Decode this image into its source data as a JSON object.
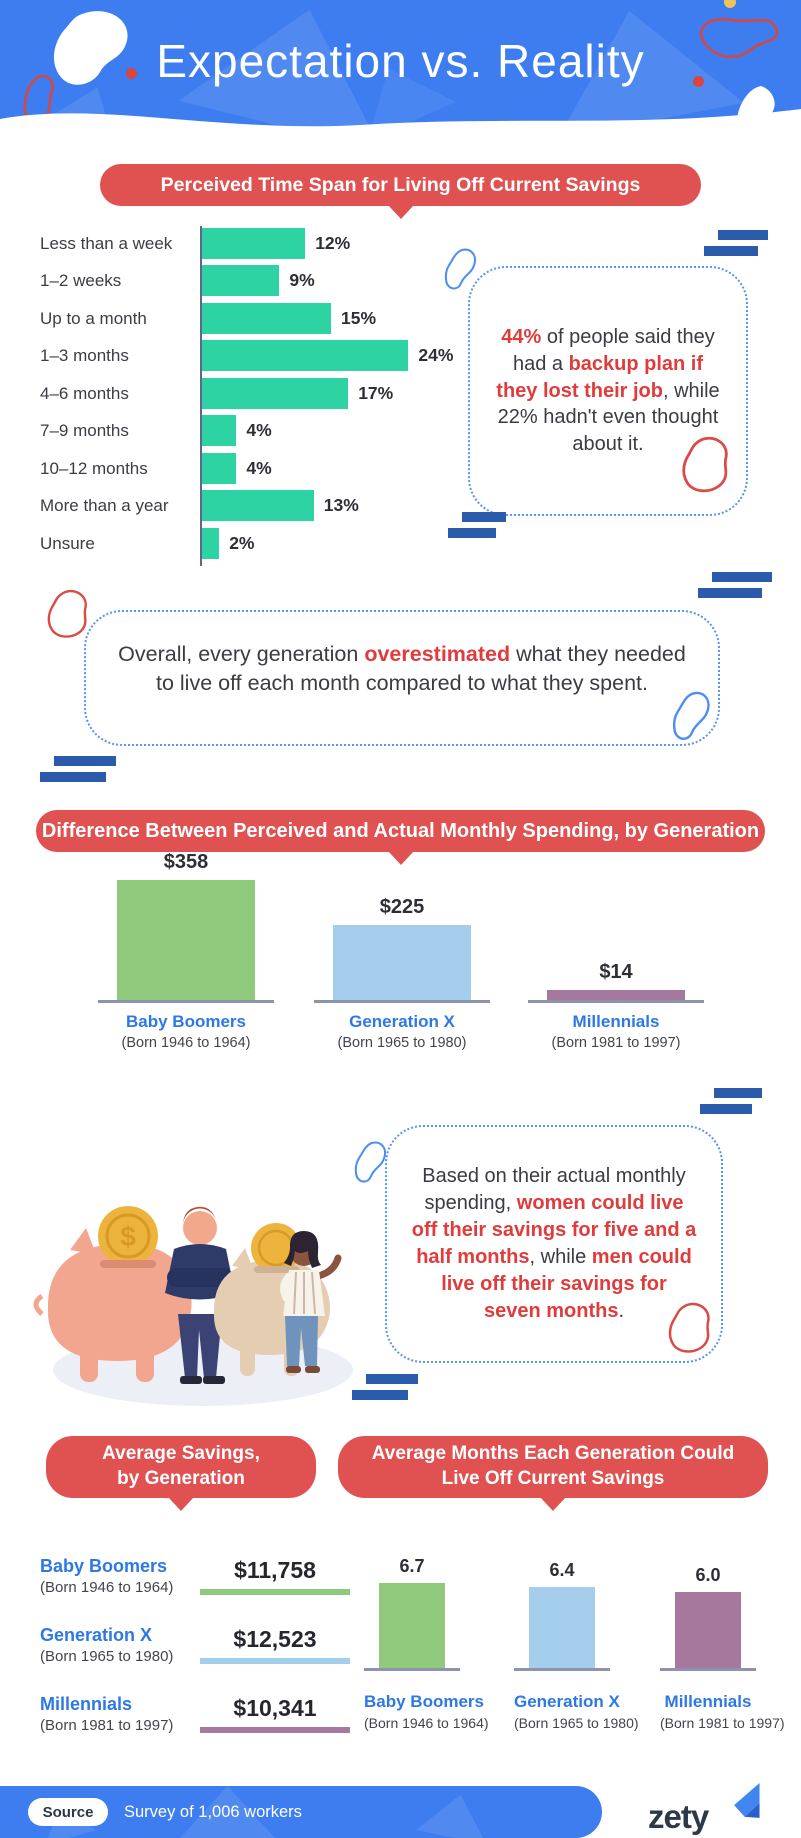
{
  "accent_colors": {
    "blue_header": "#3d7df0",
    "banner_red": "#e05252",
    "text_red": "#e03c3c",
    "teal_bar": "#2ed3a4",
    "green_bar": "#8fc97c",
    "lightblue_bar": "#a5cdec",
    "purple_bar": "#a7789d",
    "label_blue": "#2e78e6",
    "navy_decoration": "#2b5cab"
  },
  "header": {
    "title": "Expectation vs. Reality"
  },
  "banners": {
    "timespan": "Perceived Time Span for Living Off Current Savings",
    "difference": "Difference Between Perceived and Actual Monthly Spending, by Generation",
    "savings_line1": "Average Savings,",
    "savings_line2": "by Generation",
    "months_line1": "Average Months Each Generation Could",
    "months_line2": "Live Off Current Savings"
  },
  "callouts": {
    "backup_plan": [
      {
        "t": "44%",
        "red": true
      },
      {
        "t": " of people said they had a "
      },
      {
        "t": "backup plan if they lost their job",
        "red": true
      },
      {
        "t": ", while 22% hadn't even thought about it."
      }
    ],
    "overestimated": [
      {
        "t": "Overall, every generation "
      },
      {
        "t": "overestimated",
        "red": true
      },
      {
        "t": " what they needed to live off each month compared to what they spent."
      }
    ],
    "gender": [
      {
        "t": "Based on their actual monthly spending, "
      },
      {
        "t": "women could live off their savings for five and a half months",
        "red": true
      },
      {
        "t": ", while "
      },
      {
        "t": "men could live off their savings for seven months",
        "red": true
      },
      {
        "t": "."
      }
    ]
  },
  "generations": [
    {
      "name": "Baby Boomers",
      "born": "(Born 1946 to 1964)"
    },
    {
      "name": "Generation X",
      "born": "(Born 1965 to 1980)"
    },
    {
      "name": "Millennials",
      "born": "(Born 1981 to 1997)"
    }
  ],
  "chart_data": [
    {
      "type": "bar",
      "orientation": "horizontal",
      "title": "Perceived Time Span for Living Off Current Savings",
      "categories": [
        "Less than a week",
        "1–2 weeks",
        "Up to a month",
        "1–3 months",
        "4–6 months",
        "7–9 months",
        "10–12 months",
        "More than a year",
        "Unsure"
      ],
      "values": [
        12,
        9,
        15,
        24,
        17,
        4,
        4,
        13,
        2
      ],
      "value_labels": [
        "12%",
        "9%",
        "15%",
        "24%",
        "17%",
        "4%",
        "4%",
        "13%",
        "2%"
      ],
      "unit": "%",
      "bar_color": "#2ed3a4",
      "grid": false,
      "legend": false
    },
    {
      "type": "bar",
      "title": "Difference Between Perceived and Actual Monthly Spending, by Generation",
      "categories": [
        "Baby Boomers",
        "Generation X",
        "Millennials"
      ],
      "values": [
        358,
        225,
        14
      ],
      "value_labels": [
        "$358",
        "$225",
        "$14"
      ],
      "unit": "USD",
      "bar_colors": [
        "#8fc97c",
        "#a5cdec",
        "#a7789d"
      ],
      "grid": false,
      "legend": false
    },
    {
      "type": "table",
      "title": "Average Savings, by Generation",
      "categories": [
        "Baby Boomers",
        "Generation X",
        "Millennials"
      ],
      "values": [
        11758,
        12523,
        10341
      ],
      "value_labels": [
        "$11,758",
        "$12,523",
        "$10,341"
      ],
      "unit": "USD",
      "underline_colors": [
        "#8fc97c",
        "#a5cdec",
        "#a7789d"
      ]
    },
    {
      "type": "bar",
      "title": "Average Months Each Generation Could Live Off Current Savings",
      "categories": [
        "Baby Boomers",
        "Generation X",
        "Millennials"
      ],
      "values": [
        6.7,
        6.4,
        6.0
      ],
      "value_labels": [
        "6.7",
        "6.4",
        "6.0"
      ],
      "unit": "months",
      "bar_colors": [
        "#8fc97c",
        "#a5cdec",
        "#a7789d"
      ],
      "grid": false,
      "legend": false
    }
  ],
  "illustration": {
    "coin_symbol": "$"
  },
  "footer": {
    "source_label": "Source",
    "source_text": "Survey of 1,006 workers",
    "brand": "zety"
  }
}
